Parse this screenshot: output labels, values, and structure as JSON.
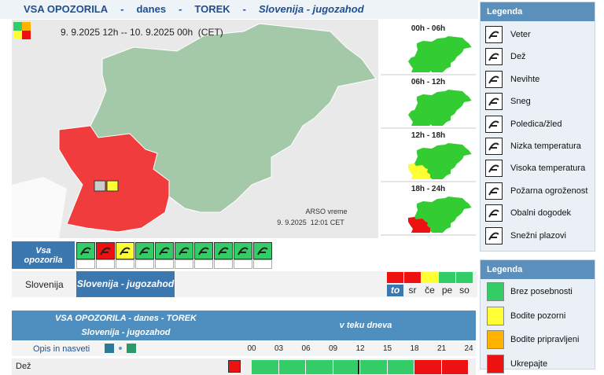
{
  "header": {
    "parts": [
      "VSA OPOZORILA",
      "-",
      "danes",
      "-",
      "TOREK",
      "-",
      "Slovenija - jugozahod"
    ]
  },
  "map": {
    "period": "9. 9.2025 12h -- 10. 9.2025 00h  (CET)",
    "credit": "ARSO vreme",
    "issued": "9. 9.2025  12:01 CET"
  },
  "periods": [
    "00h - 06h",
    "06h - 12h",
    "12h - 18h",
    "18h - 24h"
  ],
  "legend_types": {
    "title": "Legenda",
    "items": [
      "Veter",
      "Dež",
      "Nevihte",
      "Sneg",
      "Poledica/žled",
      "Nizka temperatura",
      "Visoka temperatura",
      "Požarna ogroženost",
      "Obalni dogodek",
      "Snežni plazovi"
    ]
  },
  "legend_levels": {
    "title": "Legenda",
    "items": [
      {
        "label": "Brez posebnosti",
        "color": "#33cc66"
      },
      {
        "label": "Bodite pozorni",
        "color": "#ffff33"
      },
      {
        "label": "Bodite pripravljeni",
        "color": "#ffb300"
      },
      {
        "label": "Ukrepajte",
        "color": "#ee1111"
      }
    ]
  },
  "all_warnings": {
    "label": "Vsa opozorila",
    "colors": [
      "#33cc66",
      "#ee1111",
      "#ffff33",
      "#33cc66",
      "#33cc66",
      "#33cc66",
      "#33cc66",
      "#33cc66",
      "#33cc66",
      "#33cc66"
    ]
  },
  "regions": [
    "Slovenija",
    "Slovenija - jugozahod"
  ],
  "days": {
    "labels": [
      "to",
      "sr",
      "če",
      "pe",
      "so"
    ],
    "colors": [
      "#ee1111",
      "#ee1111",
      "#ffff33",
      "#33cc66",
      "#33cc66"
    ]
  },
  "table": {
    "title": "VSA OPOZORILA - danes - TOREK",
    "region": "Slovenija - jugozahod",
    "span": "v teku dneva",
    "notes": "Opis in nasveti",
    "hours": [
      "00",
      "03",
      "06",
      "09",
      "12",
      "15",
      "18",
      "21",
      "24"
    ],
    "rows": [
      {
        "label": "Dež",
        "cells": [
          "#33cc66",
          "#33cc66",
          "#33cc66",
          "#33cc66",
          "#33cc66",
          "#33cc66",
          "#ee1111",
          "#ee1111"
        ]
      }
    ]
  }
}
